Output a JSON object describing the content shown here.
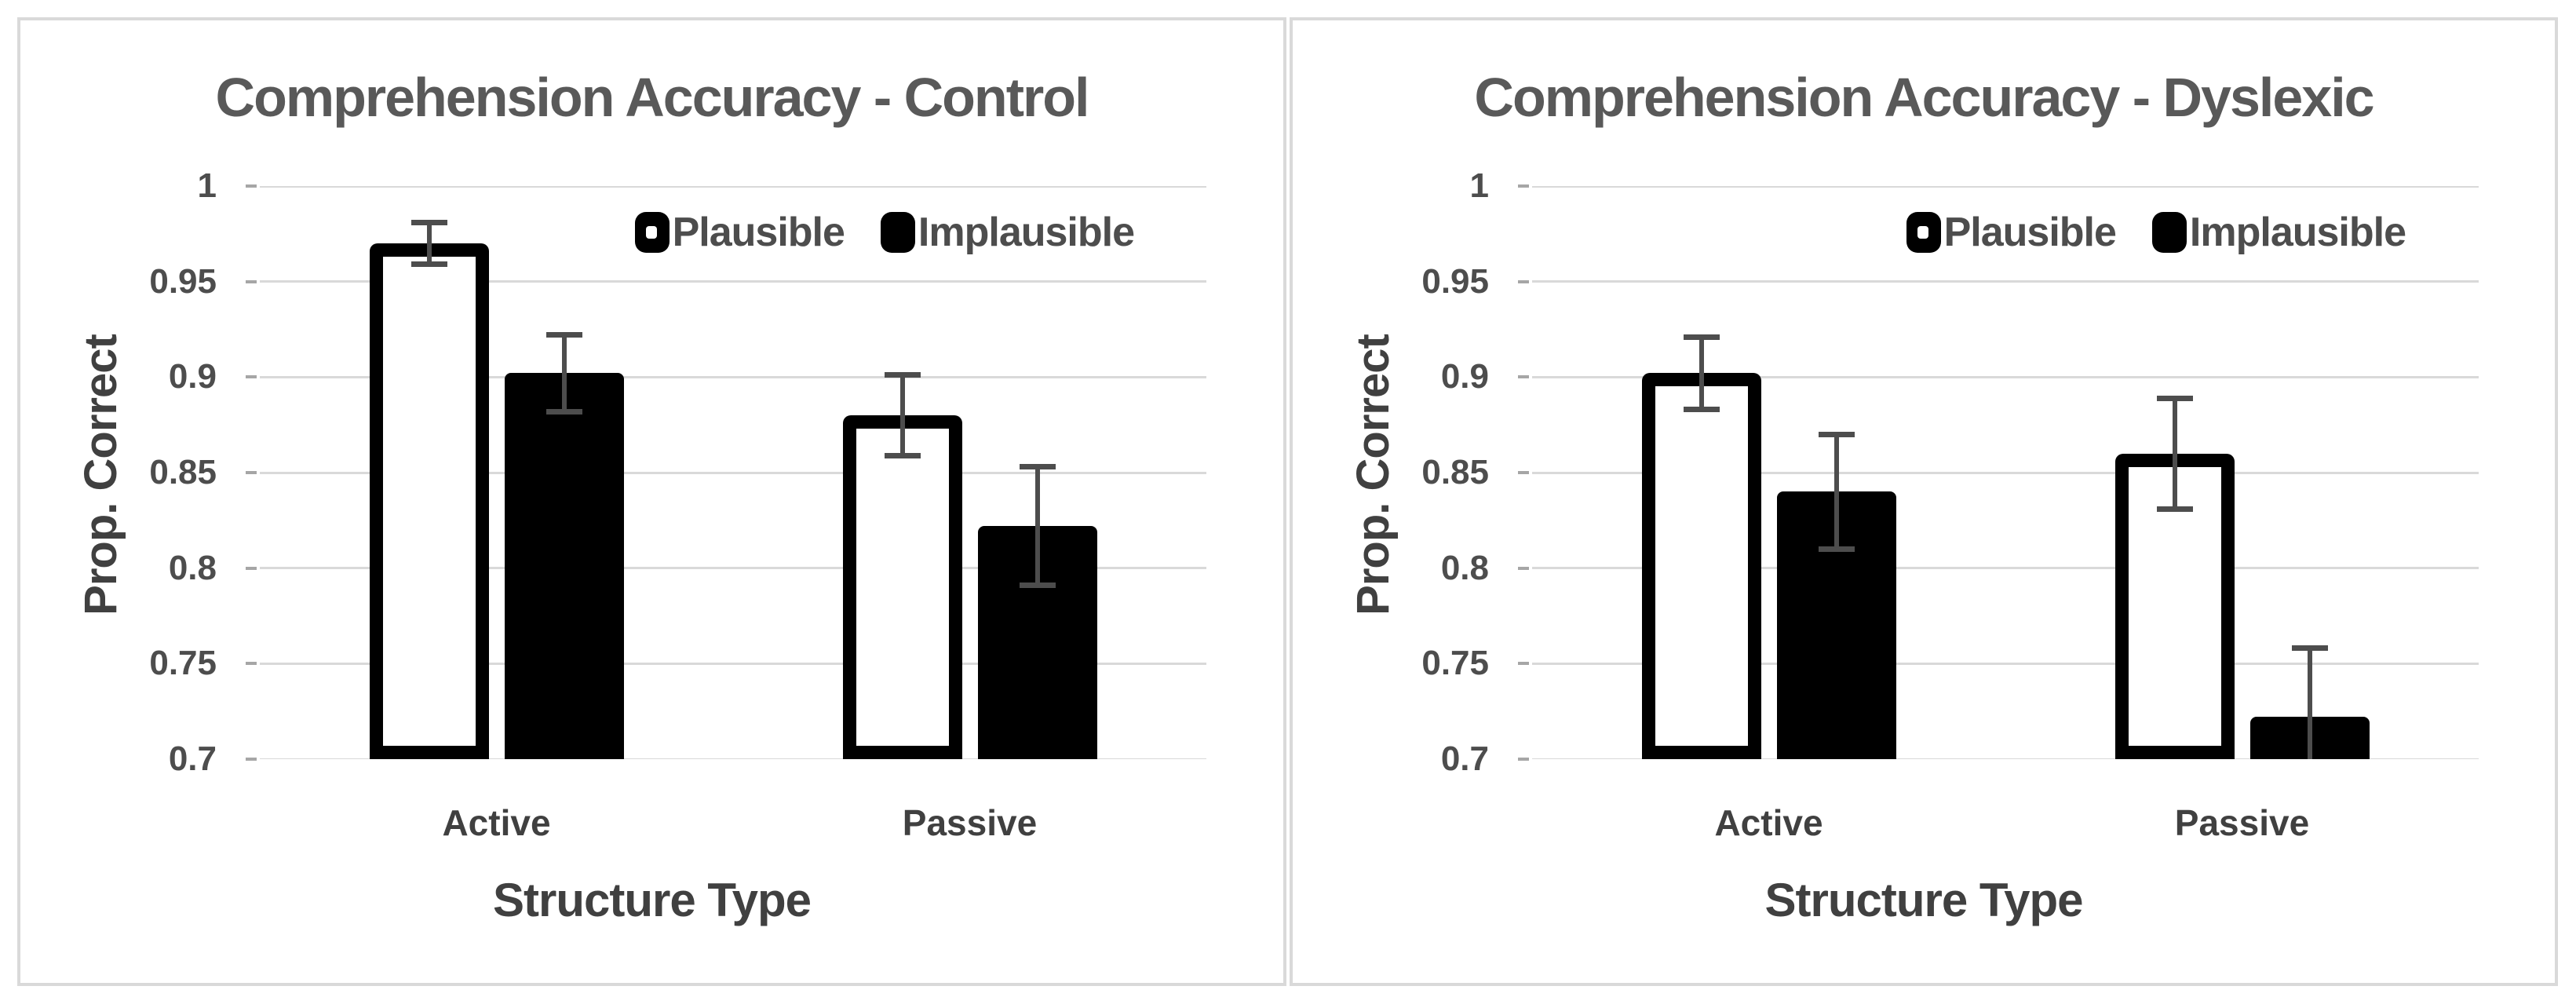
{
  "colors": {
    "panel_border": "#d9d9d9",
    "gridline": "#d9d9d9",
    "title_text": "#595959",
    "axis_text": "#404040",
    "tick_text": "#4d4d4d",
    "error_bar": "#4d4d4d",
    "plausible_fill": "#ffffff",
    "implausible_fill": "#000000",
    "bar_border": "#000000"
  },
  "chart_data": [
    {
      "type": "bar",
      "title": "Comprehension Accuracy - Control",
      "xlabel": "Structure Type",
      "ylabel": "Prop. Correct",
      "categories": [
        "Active",
        "Passive"
      ],
      "y_ticks": [
        "1",
        "0.95",
        "0.9",
        "0.85",
        "0.8",
        "0.75",
        "0.7"
      ],
      "ylim": [
        0.7,
        1.0
      ],
      "grid": true,
      "legend_position": "top-right-inside",
      "series": [
        {
          "name": "Plausible",
          "fill": "white",
          "values": [
            0.97,
            0.88
          ],
          "errors": [
            0.011,
            0.021
          ]
        },
        {
          "name": "Implausible",
          "fill": "black",
          "values": [
            0.902,
            0.822
          ],
          "errors": [
            0.02,
            0.031
          ]
        }
      ]
    },
    {
      "type": "bar",
      "title": "Comprehension Accuracy - Dyslexic",
      "xlabel": "Structure Type",
      "ylabel": "Prop. Correct",
      "categories": [
        "Active",
        "Passive"
      ],
      "y_ticks": [
        "1",
        "0.95",
        "0.9",
        "0.85",
        "0.8",
        "0.75",
        "0.7"
      ],
      "ylim": [
        0.7,
        1.0
      ],
      "grid": true,
      "legend_position": "top-right-inside",
      "series": [
        {
          "name": "Plausible",
          "fill": "white",
          "values": [
            0.902,
            0.86
          ],
          "errors": [
            0.019,
            0.029
          ]
        },
        {
          "name": "Implausible",
          "fill": "black",
          "values": [
            0.84,
            0.722
          ],
          "errors": [
            0.03,
            0.036
          ]
        }
      ]
    }
  ]
}
